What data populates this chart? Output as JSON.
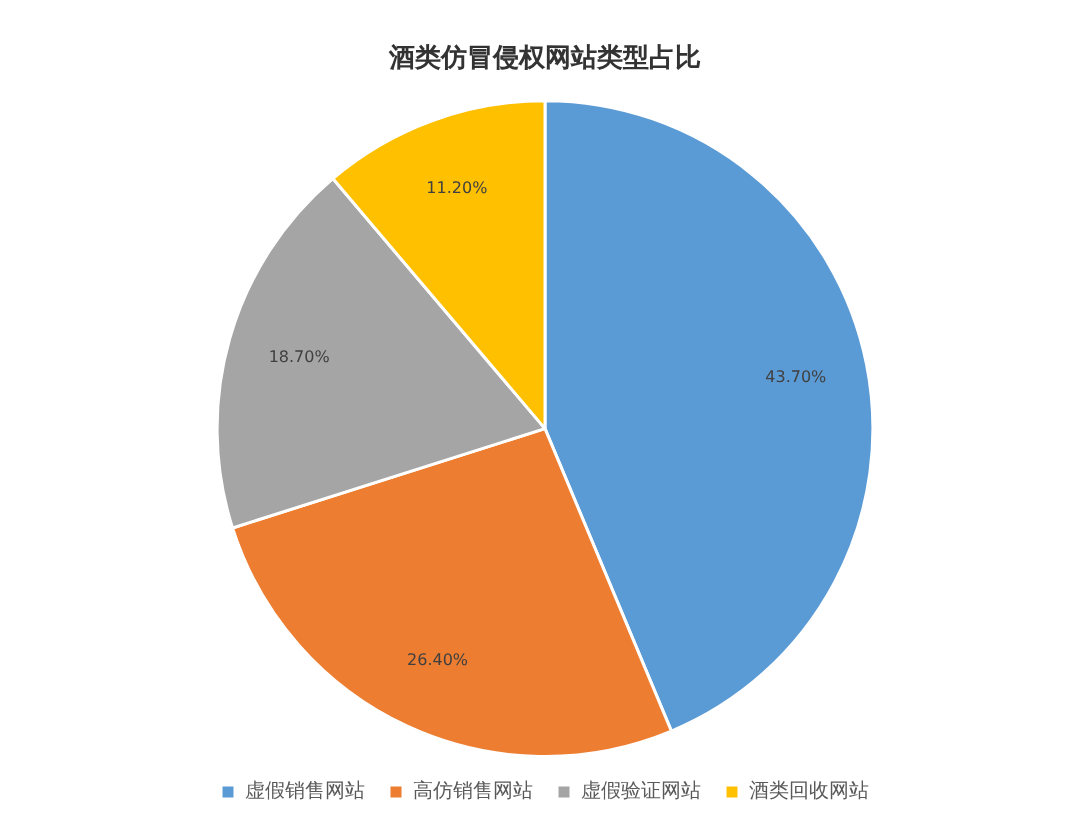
{
  "chart_data": {
    "type": "pie",
    "title": "酒类仿冒侵权网站类型占比",
    "categories": [
      "虚假销售网站",
      "高仿销售网站",
      "虚假验证网站",
      "酒类回收网站"
    ],
    "values": [
      43.7,
      26.4,
      18.7,
      11.2
    ],
    "colors": [
      "#5b9bd5",
      "#ed7d31",
      "#a5a5a5",
      "#ffc000"
    ],
    "value_labels": [
      "43.70%",
      "26.40%",
      "18.70%",
      "11.20%"
    ],
    "legend": "bottom"
  }
}
